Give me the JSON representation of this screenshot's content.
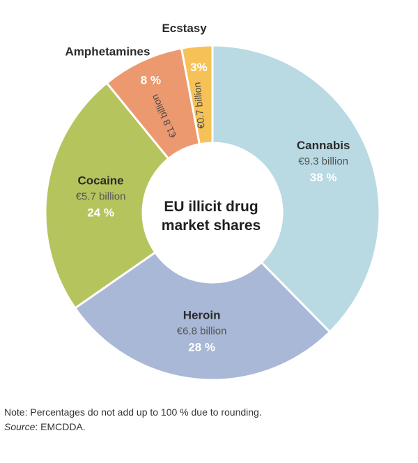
{
  "chart_data": {
    "type": "pie",
    "donut": true,
    "title": "EU illicit drug market shares",
    "title_lines": [
      "EU illicit drug",
      "market shares"
    ],
    "unit": "€ billion",
    "slices": [
      {
        "name": "Cannabis",
        "value": 9.3,
        "value_label": "€9.3 billion",
        "percent": 38,
        "percent_label": "38 %",
        "color": "#b9d9e3"
      },
      {
        "name": "Heroin",
        "value": 6.8,
        "value_label": "€6.8 billion",
        "percent": 28,
        "percent_label": "28 %",
        "color": "#a8b8d6"
      },
      {
        "name": "Cocaine",
        "value": 5.7,
        "value_label": "€5.7 billion",
        "percent": 24,
        "percent_label": "24 %",
        "color": "#b5c45c"
      },
      {
        "name": "Amphetamines",
        "value": 1.8,
        "value_label": "€1.8 billion",
        "percent": 8,
        "percent_label": "8 %",
        "color": "#ec9970"
      },
      {
        "name": "Ecstasy",
        "value": 0.7,
        "value_label": "€0.7 billion",
        "percent": 3,
        "percent_label": "3%",
        "color": "#f6c257"
      }
    ]
  },
  "footer": {
    "note": "Note: Percentages do not add up to 100 % due to rounding.",
    "source_label": "Source",
    "source_value": ": EMCDDA."
  }
}
